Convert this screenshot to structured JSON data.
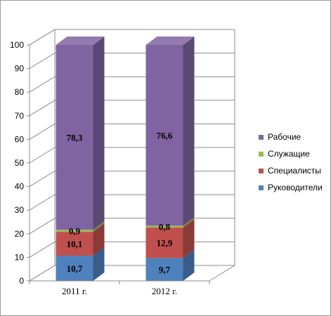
{
  "chart_data": {
    "type": "bar",
    "stacked": true,
    "three_d": true,
    "categories": [
      "2011  г.",
      "2012  г."
    ],
    "series": [
      {
        "name": "Руководители",
        "values": [
          10.7,
          9.7
        ],
        "labels": [
          "10,7",
          "9,7"
        ],
        "color": "#4f81bd"
      },
      {
        "name": "Специалисты",
        "values": [
          10.1,
          12.9
        ],
        "labels": [
          "10,1",
          "12,9"
        ],
        "color": "#c0504d"
      },
      {
        "name": "Служащие",
        "values": [
          0.9,
          0.8
        ],
        "labels": [
          "0,9",
          "0,8"
        ],
        "color": "#9bbb59"
      },
      {
        "name": "Рабочие",
        "values": [
          78.3,
          76.6
        ],
        "labels": [
          "78,3",
          "76,6"
        ],
        "color": "#8064a2"
      }
    ],
    "yticks": [
      "0",
      "10",
      "20",
      "30",
      "40",
      "50",
      "60",
      "70",
      "80",
      "90",
      "100"
    ],
    "ylim": [
      0,
      100
    ],
    "grid": true,
    "legend_position": "right"
  }
}
